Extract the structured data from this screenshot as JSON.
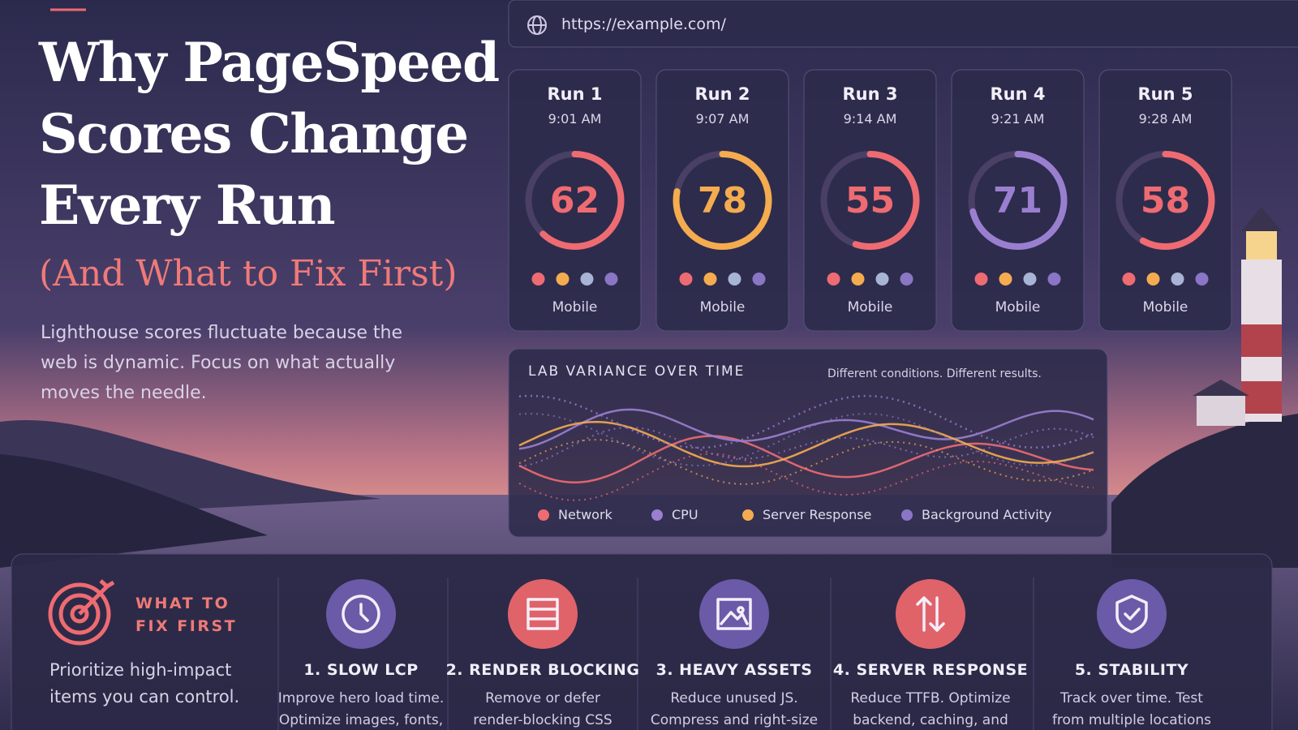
{
  "header": {
    "title_lines": [
      "Why PageSpeed",
      "Scores Change",
      "Every Run"
    ],
    "subtitle": "(And What to Fix First)",
    "description": "Lighthouse scores fluctuate because the web is dynamic. Focus on what actually moves the needle."
  },
  "url": "https://example.com/",
  "runs": [
    {
      "label": "Run 1",
      "time": "9:01 AM",
      "score": 62,
      "device": "Mobile",
      "color": "#ee6b72"
    },
    {
      "label": "Run 2",
      "time": "9:07 AM",
      "score": 78,
      "device": "Mobile",
      "color": "#f4ac4f"
    },
    {
      "label": "Run 3",
      "time": "9:14 AM",
      "score": 55,
      "device": "Mobile",
      "color": "#ee6b72"
    },
    {
      "label": "Run 4",
      "time": "9:21 AM",
      "score": 71,
      "device": "Mobile",
      "color": "#9a7fd0"
    },
    {
      "label": "Run 5",
      "time": "9:28 AM",
      "score": 58,
      "device": "Mobile",
      "color": "#ee6b72"
    }
  ],
  "variance": {
    "title": "LAB VARIANCE OVER TIME",
    "note": "Different conditions. Different results.",
    "legend": [
      {
        "name": "Network",
        "color": "#ee6b72"
      },
      {
        "name": "CPU",
        "color": "#9a7fd0"
      },
      {
        "name": "Server Response",
        "color": "#f4ac4f"
      },
      {
        "name": "Background Activity",
        "color": "#8a76c4"
      }
    ]
  },
  "fix": {
    "title_lines": [
      "WHAT TO",
      "FIX FIRST"
    ],
    "description_lines": [
      "Prioritize high-impact",
      "items you can control."
    ],
    "items": [
      {
        "title": "1. SLOW LCP",
        "lines": [
          "Improve hero load time.",
          "Optimize images, fonts,"
        ],
        "color": "#6a5aa8"
      },
      {
        "title": "2. RENDER BLOCKING",
        "lines": [
          "Remove or defer",
          "render-blocking CSS"
        ],
        "color": "#e0636a"
      },
      {
        "title": "3. HEAVY ASSETS",
        "lines": [
          "Reduce unused JS.",
          "Compress and right-size"
        ],
        "color": "#6a5aa8"
      },
      {
        "title": "4. SERVER RESPONSE",
        "lines": [
          "Reduce TTFB. Optimize",
          "backend, caching, and"
        ],
        "color": "#e0636a"
      },
      {
        "title": "5. STABILITY",
        "lines": [
          "Track over time. Test",
          "from multiple locations"
        ],
        "color": "#6a5aa8"
      }
    ]
  }
}
